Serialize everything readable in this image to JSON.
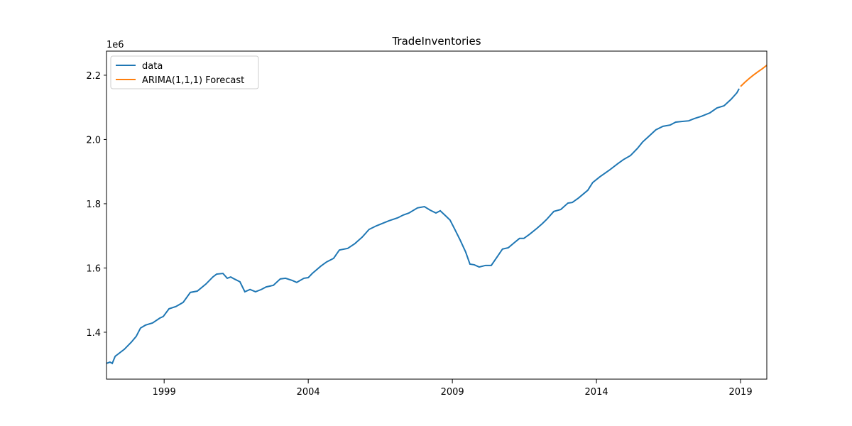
{
  "chart_data": {
    "type": "line",
    "title": "TradeInventories",
    "y_offset_label": "1e6",
    "xlim": [
      1997,
      2019.91
    ],
    "xticks": [
      1999,
      2004,
      2009,
      2014,
      2019
    ],
    "ylim": [
      1.254,
      2.275
    ],
    "yticks": [
      1.4,
      1.6,
      1.8,
      {
        "value": 2,
        "label": "2.0"
      },
      2.2
    ],
    "legend": "upper left",
    "series": [
      {
        "name": "data",
        "color": "#1f77b4",
        "x": [
          1997.0,
          1997.12,
          1997.2,
          1997.3,
          1997.62,
          1997.86,
          1998.03,
          1998.18,
          1998.35,
          1998.6,
          1998.85,
          1998.97,
          1999.17,
          1999.41,
          1999.66,
          1999.91,
          2000.15,
          2000.45,
          2000.69,
          2000.82,
          2001.04,
          2001.19,
          2001.31,
          2001.43,
          2001.63,
          2001.8,
          2001.98,
          2002.17,
          2002.37,
          2002.54,
          2002.79,
          2003.03,
          2003.21,
          2003.45,
          2003.6,
          2003.85,
          2004.0,
          2004.14,
          2004.44,
          2004.64,
          2004.88,
          2005.08,
          2005.37,
          2005.62,
          2005.87,
          2006.11,
          2006.36,
          2006.61,
          2006.8,
          2007.1,
          2007.3,
          2007.49,
          2007.79,
          2008.03,
          2008.23,
          2008.43,
          2008.58,
          2008.77,
          2008.92,
          2009.07,
          2009.27,
          2009.46,
          2009.61,
          2009.76,
          2009.93,
          2010.15,
          2010.35,
          2010.55,
          2010.74,
          2010.94,
          2011.14,
          2011.33,
          2011.48,
          2011.68,
          2011.93,
          2012.12,
          2012.27,
          2012.52,
          2012.76,
          2013.01,
          2013.16,
          2013.38,
          2013.7,
          2013.87,
          2014.12,
          2014.44,
          2014.73,
          2014.93,
          2015.18,
          2015.42,
          2015.6,
          2015.82,
          2016.06,
          2016.31,
          2016.56,
          2016.75,
          2016.95,
          2017.2,
          2017.39,
          2017.64,
          2017.94,
          2018.18,
          2018.43,
          2018.67,
          2018.8,
          2018.87,
          2018.95
        ],
        "values": [
          1.303,
          1.307,
          1.303,
          1.325,
          1.347,
          1.369,
          1.387,
          1.413,
          1.422,
          1.429,
          1.444,
          1.449,
          1.473,
          1.48,
          1.493,
          1.524,
          1.528,
          1.55,
          1.572,
          1.581,
          1.583,
          1.568,
          1.572,
          1.566,
          1.557,
          1.526,
          1.533,
          1.526,
          1.533,
          1.541,
          1.546,
          1.566,
          1.568,
          1.561,
          1.555,
          1.568,
          1.57,
          1.583,
          1.606,
          1.619,
          1.63,
          1.656,
          1.661,
          1.676,
          1.696,
          1.72,
          1.731,
          1.74,
          1.747,
          1.756,
          1.765,
          1.771,
          1.787,
          1.791,
          1.78,
          1.771,
          1.778,
          1.762,
          1.749,
          1.723,
          1.687,
          1.65,
          1.612,
          1.61,
          1.603,
          1.608,
          1.608,
          1.634,
          1.659,
          1.663,
          1.678,
          1.692,
          1.692,
          1.705,
          1.723,
          1.738,
          1.751,
          1.776,
          1.782,
          1.802,
          1.804,
          1.818,
          1.842,
          1.866,
          1.884,
          1.904,
          1.924,
          1.937,
          1.95,
          1.972,
          1.992,
          2.01,
          2.03,
          2.041,
          2.045,
          2.054,
          2.056,
          2.058,
          2.065,
          2.072,
          2.083,
          2.098,
          2.105,
          2.125,
          2.138,
          2.145,
          2.158
        ]
      },
      {
        "name": "ARIMA(1,1,1) Forecast",
        "color": "#ff7f0e",
        "x": [
          2019.0,
          2019.15,
          2019.29,
          2019.44,
          2019.59,
          2019.75,
          2019.91
        ],
        "values": [
          2.165,
          2.178,
          2.189,
          2.2,
          2.21,
          2.22,
          2.231
        ]
      }
    ]
  }
}
